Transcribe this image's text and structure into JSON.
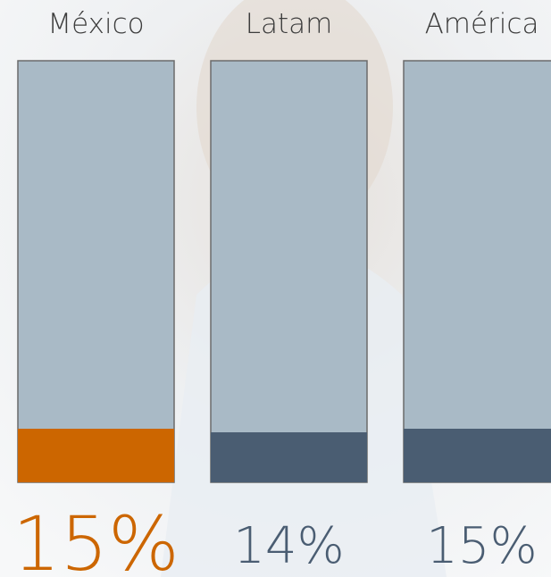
{
  "chart_data": {
    "type": "bar",
    "categories": [
      "México",
      "Latam",
      "América"
    ],
    "values": [
      15,
      14,
      15
    ],
    "value_labels": [
      "15%",
      "14%",
      "15%"
    ],
    "colors": [
      "#cc6600",
      "#4a5d72",
      "#4a5d72"
    ],
    "ylim": [
      0,
      118
    ]
  }
}
